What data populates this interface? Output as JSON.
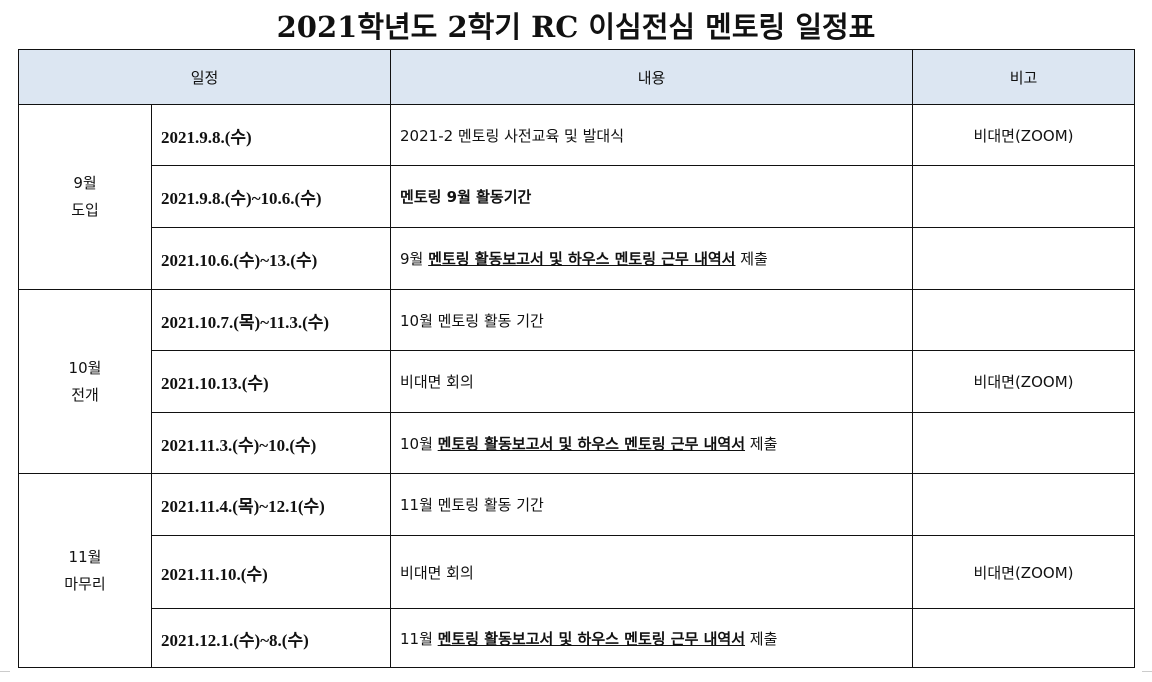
{
  "title": "2021학년도 2학기 RC 이심전심 멘토링 일정표",
  "headers": {
    "schedule": "일정",
    "content": "내용",
    "note": "비고"
  },
  "groups": [
    {
      "month": "9월",
      "phase": "도입"
    },
    {
      "month": "10월",
      "phase": "전개"
    },
    {
      "month": "11월",
      "phase": "마무리"
    }
  ],
  "rows": [
    {
      "date": "2021.9.8.(수)",
      "pre": "2021-2 멘토링 사전교육 및 발대식",
      "ul": "",
      "post": "",
      "note": "비대면(ZOOM)"
    },
    {
      "date": "2021.9.8.(수)~10.6.(수)",
      "pre": "멘토링 9월 활동기간",
      "ul": "",
      "post": "",
      "note": ""
    },
    {
      "date": "2021.10.6.(수)~13.(수)",
      "pre": "9월 ",
      "ul": "멘토링 활동보고서 및 하우스 멘토링 근무 내역서",
      "post": " 제출",
      "note": ""
    },
    {
      "date": "2021.10.7.(목)~11.3.(수)",
      "pre": "10월 멘토링 활동 기간",
      "ul": "",
      "post": "",
      "note": ""
    },
    {
      "date": "2021.10.13.(수)",
      "pre": "비대면 회의",
      "ul": "",
      "post": "",
      "note": "비대면(ZOOM)"
    },
    {
      "date": "2021.11.3.(수)~10.(수)",
      "pre": "10월 ",
      "ul": "멘토링 활동보고서 및 하우스 멘토링 근무 내역서",
      "post": " 제출",
      "note": ""
    },
    {
      "date": "2021.11.4.(목)~12.1(수)",
      "pre": "11월 멘토링 활동 기간",
      "ul": "",
      "post": "",
      "note": ""
    },
    {
      "date": "2021.11.10.(수)",
      "pre": "비대면 회의",
      "ul": "",
      "post": "",
      "note": "비대면(ZOOM)"
    },
    {
      "date": "2021.12.1.(수)~8.(수)",
      "pre": "11월 ",
      "ul": "멘토링 활동보고서 및 하우스 멘토링 근무 내역서",
      "post": " 제출",
      "note": ""
    }
  ]
}
